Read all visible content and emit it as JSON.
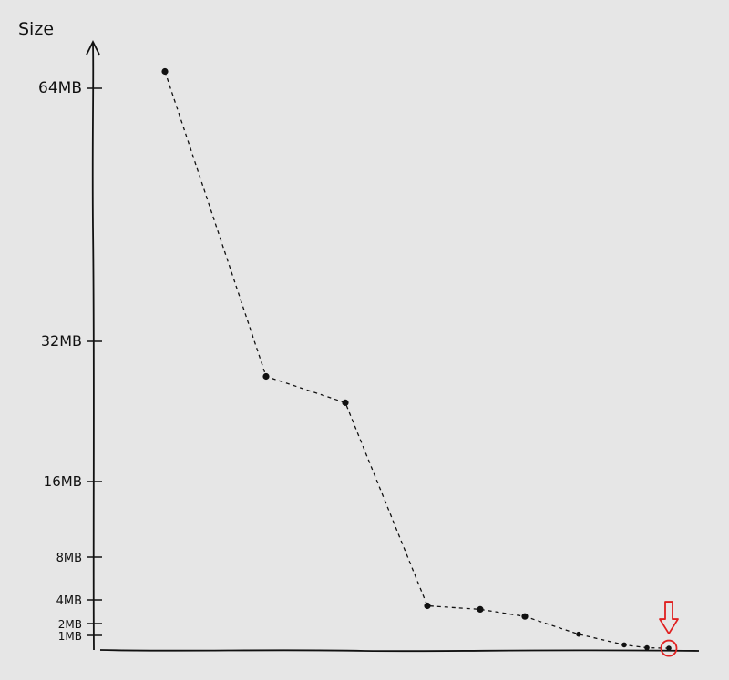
{
  "chart_data": {
    "type": "line",
    "title": "",
    "xlabel": "",
    "ylabel": "Size",
    "y_scale": "piecewise (hand-drawn, non-uniform)",
    "grid": false,
    "legend": "none",
    "y_ticks": [
      {
        "label": "1MB",
        "value": 1
      },
      {
        "label": "2MB",
        "value": 2
      },
      {
        "label": "4MB",
        "value": 4
      },
      {
        "label": "8MB",
        "value": 8
      },
      {
        "label": "16MB",
        "value": 16
      },
      {
        "label": "32MB",
        "value": 32
      },
      {
        "label": "64MB",
        "value": 64
      }
    ],
    "series": [
      {
        "x": [
          1,
          2,
          3,
          4,
          5,
          6,
          7,
          8,
          9,
          10
        ],
        "values": [
          66,
          28,
          25,
          3.5,
          3.2,
          2.6,
          1.1,
          0.35,
          0.15,
          0.12
        ]
      }
    ],
    "line_style": "dashed",
    "colors": {
      "line": "#111111",
      "highlight": "#e02020",
      "background": "#e6e6e6"
    },
    "annotations": [
      {
        "type": "circle-with-down-arrow",
        "target_point_index": 9,
        "color": "#e02020"
      }
    ]
  }
}
